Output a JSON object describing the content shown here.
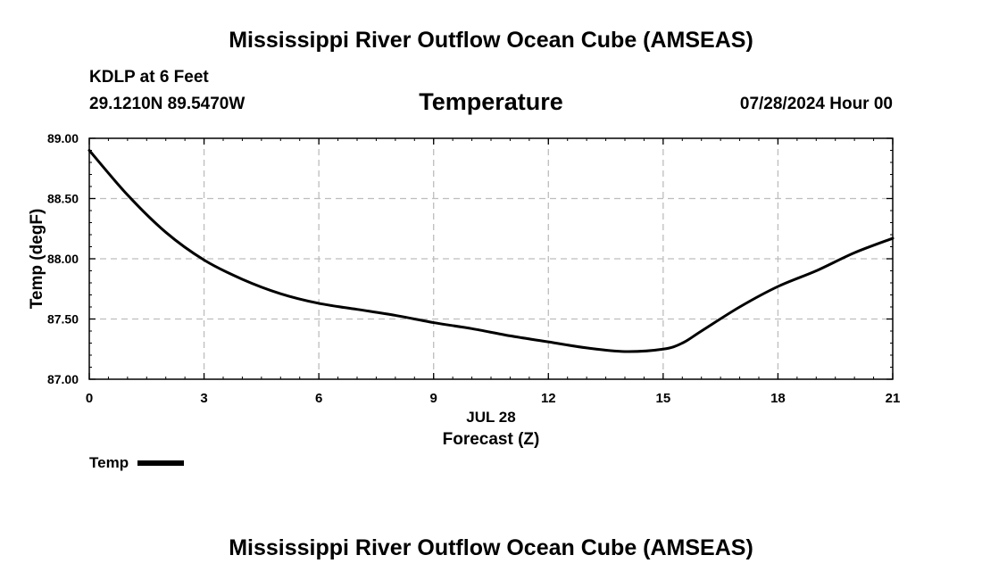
{
  "header": {
    "top_title": "Mississippi River Outflow Ocean Cube (AMSEAS)",
    "station": "KDLP at 6 Feet",
    "coords": "29.1210N  89.5470W",
    "panel_title": "Temperature",
    "valid_time": "07/28/2024 Hour 00",
    "date_label": "JUL 28",
    "bottom_title": "Mississippi River Outflow Ocean Cube (AMSEAS)"
  },
  "chart_data": {
    "type": "line",
    "title": "Temperature",
    "xlabel": "Forecast (Z)",
    "ylabel": "Temp (degF)",
    "xlim": [
      0,
      21
    ],
    "ylim": [
      87.0,
      89.0
    ],
    "x_ticks": [
      0,
      3,
      6,
      9,
      12,
      15,
      18,
      21
    ],
    "x_tick_labels": [
      "0",
      "3",
      "6",
      "9",
      "12",
      "15",
      "18",
      "21"
    ],
    "y_ticks": [
      87.0,
      87.5,
      88.0,
      88.5,
      89.0
    ],
    "y_tick_labels": [
      "87.00",
      "87.50",
      "88.00",
      "88.50",
      "89.00"
    ],
    "grid": true,
    "legend_position": "bottom-left",
    "series": [
      {
        "name": "Temp",
        "color": "#000000",
        "x": [
          0,
          1,
          2,
          3,
          4,
          5,
          6,
          7,
          8,
          9,
          10,
          11,
          12,
          13,
          14,
          15,
          15.5,
          16,
          17,
          18,
          19,
          20,
          21
        ],
        "values": [
          88.9,
          88.53,
          88.22,
          87.99,
          87.83,
          87.71,
          87.63,
          87.58,
          87.53,
          87.47,
          87.42,
          87.36,
          87.31,
          87.26,
          87.23,
          87.25,
          87.3,
          87.4,
          87.6,
          87.77,
          87.9,
          88.05,
          88.17
        ]
      }
    ]
  }
}
